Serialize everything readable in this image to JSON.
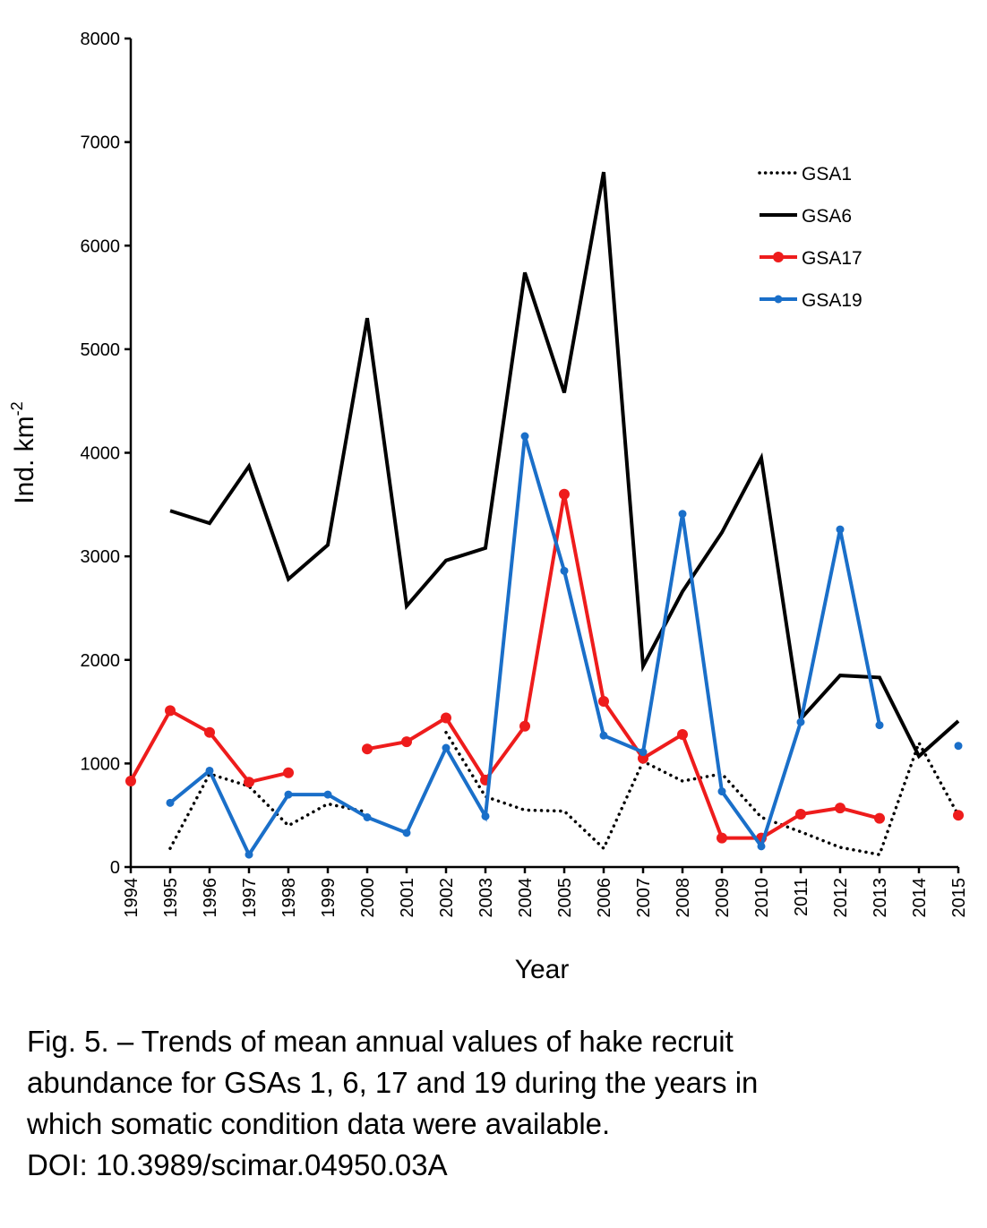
{
  "chart_data": {
    "type": "line",
    "title": "",
    "xlabel": "Year",
    "ylabel": "Ind. km",
    "ylabel_superscript": "-2",
    "ylim": [
      0,
      8000
    ],
    "yticks": [
      0,
      1000,
      2000,
      3000,
      4000,
      5000,
      6000,
      7000,
      8000
    ],
    "categories": [
      "1994",
      "1995",
      "1996",
      "1997",
      "1998",
      "1999",
      "2000",
      "2001",
      "2002",
      "2003",
      "2004",
      "2005",
      "2006",
      "2007",
      "2008",
      "2009",
      "2010",
      "2011",
      "2012",
      "2013",
      "2014",
      "2015"
    ],
    "legend_position": "top-right",
    "grid": false,
    "series": [
      {
        "name": "GSA1",
        "color": "#000000",
        "style": "dotted",
        "markers": false,
        "values": [
          null,
          180,
          900,
          780,
          400,
          610,
          530,
          null,
          1300,
          680,
          550,
          540,
          180,
          1020,
          830,
          900,
          480,
          340,
          190,
          120,
          1200,
          500
        ]
      },
      {
        "name": "GSA6",
        "color": "#000000",
        "style": "solid",
        "markers": false,
        "values": [
          null,
          3440,
          3320,
          3870,
          2780,
          3110,
          5300,
          2520,
          2960,
          3080,
          5740,
          4580,
          6710,
          1940,
          2660,
          3230,
          3950,
          1430,
          1850,
          1830,
          1070,
          1410
        ]
      },
      {
        "name": "GSA17",
        "color": "#ee1c1c",
        "style": "solid",
        "markers": true,
        "values": [
          830,
          1510,
          1300,
          820,
          910,
          null,
          1140,
          1210,
          1440,
          840,
          1360,
          3600,
          1600,
          1050,
          1280,
          280,
          280,
          510,
          570,
          470,
          null,
          500
        ]
      },
      {
        "name": "GSA19",
        "color": "#1a6fc9",
        "style": "solid",
        "markers": true,
        "values": [
          null,
          620,
          930,
          120,
          700,
          700,
          480,
          330,
          1150,
          490,
          4160,
          2860,
          1270,
          1110,
          3410,
          730,
          200,
          1400,
          3260,
          1370,
          null,
          1170
        ]
      }
    ]
  },
  "caption": {
    "line1": "Fig. 5. – Trends of mean annual values of hake recruit",
    "line2": "abundance for GSAs 1, 6, 17 and 19 during the years in",
    "line3": "which somatic condition data were available.",
    "line4": "DOI: 10.3989/scimar.04950.03A"
  }
}
